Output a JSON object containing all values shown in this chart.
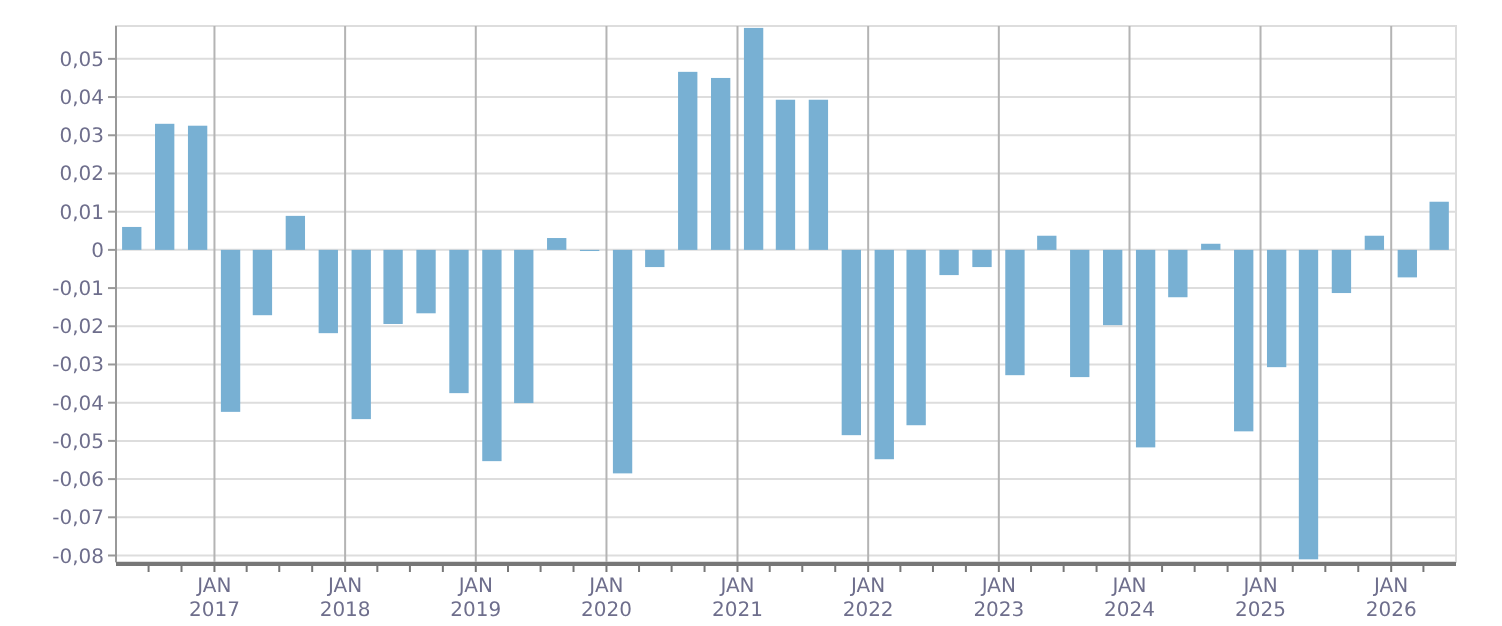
{
  "chart_data": {
    "type": "bar",
    "color": "#78b0d3",
    "x": [
      "2016-05-15",
      "2016-08-15",
      "2016-11-15",
      "2017-02-15",
      "2017-05-15",
      "2017-08-15",
      "2017-11-15",
      "2018-02-15",
      "2018-05-15",
      "2018-08-15",
      "2018-11-15",
      "2019-02-15",
      "2019-05-15",
      "2019-08-15",
      "2019-11-15",
      "2020-02-15",
      "2020-05-15",
      "2020-08-15",
      "2020-11-15",
      "2021-02-15",
      "2021-05-15",
      "2021-08-15",
      "2021-11-15",
      "2022-02-15",
      "2022-05-15",
      "2022-08-15",
      "2022-11-15",
      "2023-02-15",
      "2023-05-15",
      "2023-08-15",
      "2023-11-15",
      "2024-02-15",
      "2024-05-15",
      "2024-08-15",
      "2024-11-15",
      "2025-02-15",
      "2025-05-15",
      "2025-08-15",
      "2025-11-15",
      "2026-02-15",
      "2026-05-15"
    ],
    "values": [
      0.006,
      0.033,
      0.0325,
      -0.0424,
      -0.0171,
      0.0089,
      -0.0218,
      -0.0443,
      -0.0194,
      -0.0166,
      -0.0375,
      -0.0553,
      -0.0401,
      0.0031,
      -0.0003,
      -0.0585,
      -0.0045,
      0.0466,
      0.045,
      0.0581,
      0.0393,
      0.0393,
      -0.0485,
      -0.0548,
      -0.0459,
      -0.0066,
      -0.0045,
      -0.0328,
      0.0037,
      -0.0333,
      -0.0197,
      -0.0517,
      -0.0124,
      0.0016,
      -0.0475,
      -0.0307,
      -0.081,
      -0.0113,
      0.0037,
      -0.0072,
      0.0126
    ],
    "xlim": [
      "2016-04-01",
      "2026-07-01"
    ],
    "xticks": [
      {
        "value": "2016-07-01",
        "label": null
      },
      {
        "value": "2016-10-01",
        "label": null
      },
      {
        "value": "2017-01-01",
        "label": "JAN\n2017"
      },
      {
        "value": "2017-04-01",
        "label": null
      },
      {
        "value": "2017-07-01",
        "label": null
      },
      {
        "value": "2017-10-01",
        "label": null
      },
      {
        "value": "2018-01-01",
        "label": "JAN\n2018"
      },
      {
        "value": "2018-04-01",
        "label": null
      },
      {
        "value": "2018-07-01",
        "label": null
      },
      {
        "value": "2018-10-01",
        "label": null
      },
      {
        "value": "2019-01-01",
        "label": "JAN\n2019"
      },
      {
        "value": "2019-04-01",
        "label": null
      },
      {
        "value": "2019-07-01",
        "label": null
      },
      {
        "value": "2019-10-01",
        "label": null
      },
      {
        "value": "2020-01-01",
        "label": "JAN\n2020"
      },
      {
        "value": "2020-04-01",
        "label": null
      },
      {
        "value": "2020-07-01",
        "label": null
      },
      {
        "value": "2020-10-01",
        "label": null
      },
      {
        "value": "2021-01-01",
        "label": "JAN\n2021"
      },
      {
        "value": "2021-04-01",
        "label": null
      },
      {
        "value": "2021-07-01",
        "label": null
      },
      {
        "value": "2021-10-01",
        "label": null
      },
      {
        "value": "2022-01-01",
        "label": "JAN\n2022"
      },
      {
        "value": "2022-04-01",
        "label": null
      },
      {
        "value": "2022-07-01",
        "label": null
      },
      {
        "value": "2022-10-01",
        "label": null
      },
      {
        "value": "2023-01-01",
        "label": "JAN\n2023"
      },
      {
        "value": "2023-04-01",
        "label": null
      },
      {
        "value": "2023-07-01",
        "label": null
      },
      {
        "value": "2023-10-01",
        "label": null
      },
      {
        "value": "2024-01-01",
        "label": "JAN\n2024"
      },
      {
        "value": "2024-04-01",
        "label": null
      },
      {
        "value": "2024-07-01",
        "label": null
      },
      {
        "value": "2024-10-01",
        "label": null
      },
      {
        "value": "2025-01-01",
        "label": "JAN\n2025"
      },
      {
        "value": "2025-04-01",
        "label": null
      },
      {
        "value": "2025-07-01",
        "label": null
      },
      {
        "value": "2025-10-01",
        "label": null
      },
      {
        "value": "2026-01-01",
        "label": "JAN\n2026"
      },
      {
        "value": "2026-04-01",
        "label": null
      }
    ],
    "ylim": [
      -0.0817,
      0.0586
    ],
    "yticks": [
      {
        "value": -0.08,
        "label": "-0,08"
      },
      {
        "value": -0.07,
        "label": "-0,07"
      },
      {
        "value": -0.06,
        "label": "-0,06"
      },
      {
        "value": -0.05,
        "label": "-0,05"
      },
      {
        "value": -0.04,
        "label": "-0,04"
      },
      {
        "value": -0.03,
        "label": "-0,03"
      },
      {
        "value": -0.02,
        "label": "-0,02"
      },
      {
        "value": -0.01,
        "label": "-0,01"
      },
      0,
      {
        "value": 0.01,
        "label": "0,01"
      },
      {
        "value": 0.02,
        "label": "0,02"
      },
      {
        "value": 0.03,
        "label": "0,03"
      },
      {
        "value": 0.04,
        "label": "0,04"
      },
      {
        "value": 0.05,
        "label": "0,05"
      }
    ],
    "grid": true
  }
}
